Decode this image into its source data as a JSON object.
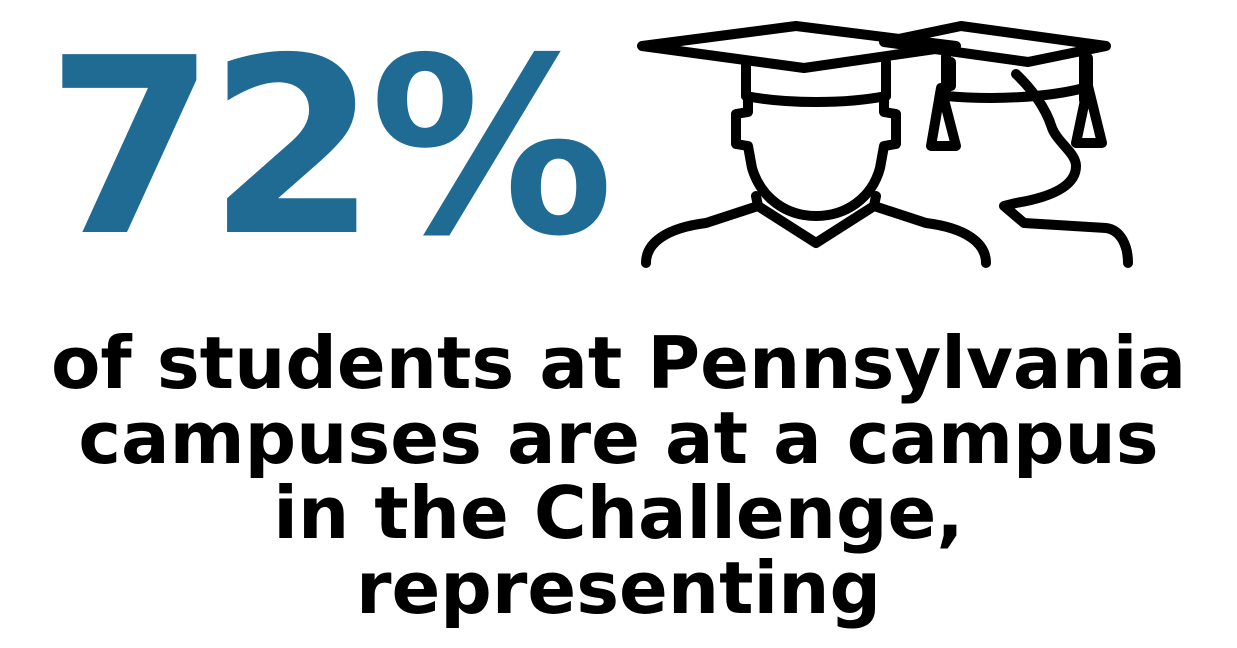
{
  "stat": {
    "value": "72%",
    "color": "#1f6b93"
  },
  "icon": {
    "name": "graduates-icon",
    "stroke_color": "#000000"
  },
  "caption": {
    "color": "#000000",
    "lines": [
      "of students at Pennsylvania",
      "campuses are at a campus",
      "in the Challenge,",
      "representing"
    ]
  }
}
